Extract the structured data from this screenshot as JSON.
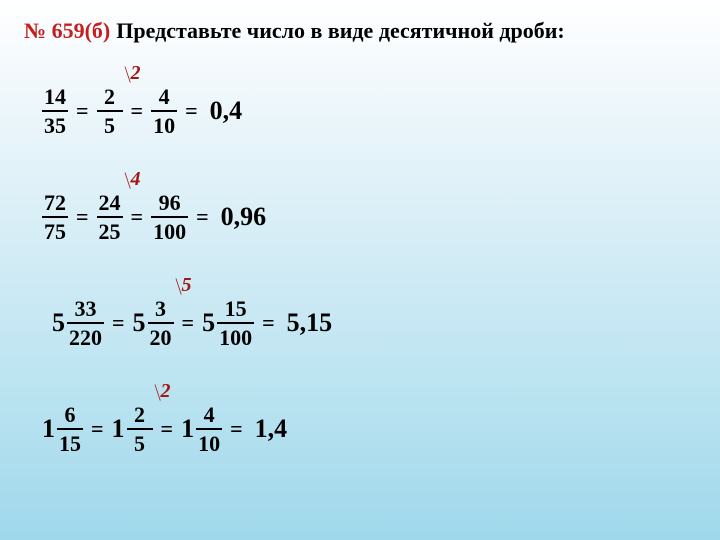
{
  "header": {
    "number": "№ 659(б)",
    "title": "Представьте число в виде десятичной дроби:"
  },
  "colors": {
    "accent": "#c41e1e",
    "annot": "#a01818",
    "text": "#000000"
  },
  "lines": [
    {
      "terms": [
        {
          "type": "frac",
          "num": "14",
          "den": "35"
        },
        {
          "type": "eq"
        },
        {
          "type": "frac",
          "num": "2",
          "den": "5",
          "annot": "2"
        },
        {
          "type": "eq"
        },
        {
          "type": "frac",
          "num": "4",
          "den": "10"
        },
        {
          "type": "eq"
        }
      ],
      "result": "0,4"
    },
    {
      "terms": [
        {
          "type": "frac",
          "num": "72",
          "den": "75"
        },
        {
          "type": "eq"
        },
        {
          "type": "frac",
          "num": "24",
          "den": "25",
          "annot": "4"
        },
        {
          "type": "eq"
        },
        {
          "type": "frac",
          "num": "96",
          "den": "100"
        },
        {
          "type": "eq"
        }
      ],
      "result": "0,96"
    },
    {
      "terms": [
        {
          "type": "mixed",
          "whole": "5",
          "num": "33",
          "den": "220"
        },
        {
          "type": "eq"
        },
        {
          "type": "mixed",
          "whole": "5",
          "num": "3",
          "den": "20",
          "annot": "5"
        },
        {
          "type": "eq"
        },
        {
          "type": "mixed",
          "whole": "5",
          "num": "15",
          "den": "100"
        },
        {
          "type": "eq"
        }
      ],
      "result": "5,15"
    },
    {
      "terms": [
        {
          "type": "mixed",
          "whole": "1",
          "num": "6",
          "den": "15"
        },
        {
          "type": "eq"
        },
        {
          "type": "mixed",
          "whole": "1",
          "num": "2",
          "den": "5",
          "annot": "2"
        },
        {
          "type": "eq"
        },
        {
          "type": "mixed",
          "whole": "1",
          "num": "4",
          "den": "10"
        },
        {
          "type": "eq"
        }
      ],
      "result": "1,4"
    }
  ]
}
